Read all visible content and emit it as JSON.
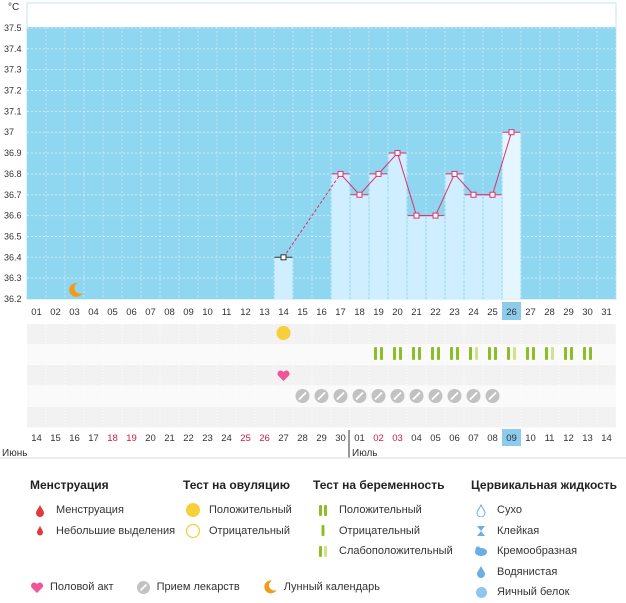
{
  "chart_data": {
    "type": "line",
    "ylabel": "°C",
    "ylim": [
      36.2,
      37.55
    ],
    "y_ticks": [
      "36.2",
      "36.3",
      "36.4",
      "36.5",
      "36.6",
      "36.7",
      "36.8",
      "36.9",
      "37",
      "37.1",
      "37.2",
      "37.3",
      "37.4",
      "37.5"
    ],
    "top_dates": [
      "01",
      "02",
      "03",
      "04",
      "05",
      "06",
      "07",
      "08",
      "09",
      "10",
      "11",
      "12",
      "13",
      "14",
      "15",
      "16",
      "17",
      "18",
      "19",
      "20",
      "21",
      "22",
      "23",
      "24",
      "25",
      "26",
      "27",
      "28",
      "29",
      "30",
      "31"
    ],
    "bottom_dates": [
      "14",
      "15",
      "16",
      "17",
      "18",
      "19",
      "20",
      "21",
      "22",
      "23",
      "24",
      "25",
      "26",
      "27",
      "28",
      "29",
      "30",
      "01",
      "02",
      "03",
      "04",
      "05",
      "06",
      "07",
      "08",
      "09",
      "10",
      "11",
      "12",
      "13",
      "14"
    ],
    "bottom_red_days": [
      4,
      5,
      11,
      12,
      18,
      19
    ],
    "month_labels": [
      {
        "text": "Июнь",
        "col": 0
      },
      {
        "text": "Июль",
        "col": 17
      }
    ],
    "highlight_col": 25,
    "temperature": [
      {
        "day": 14,
        "value": 36.4
      },
      {
        "day": 17,
        "value": 36.8
      },
      {
        "day": 18,
        "value": 36.7
      },
      {
        "day": 19,
        "value": 36.8
      },
      {
        "day": 20,
        "value": 36.9
      },
      {
        "day": 21,
        "value": 36.6
      },
      {
        "day": 22,
        "value": 36.6
      },
      {
        "day": 23,
        "value": 36.8
      },
      {
        "day": 24,
        "value": 36.7
      },
      {
        "day": 25,
        "value": 36.7
      },
      {
        "day": 26,
        "value": 37.0
      }
    ],
    "moon_day": 3,
    "ovulation_positive_days": [
      14
    ],
    "intercourse_days": [
      14
    ],
    "medication_days": [
      15,
      16,
      17,
      18,
      19,
      20,
      21,
      22,
      23,
      24,
      25
    ],
    "pregnancy_tests": [
      {
        "day": 19,
        "result": "positive"
      },
      {
        "day": 20,
        "result": "positive"
      },
      {
        "day": 21,
        "result": "positive"
      },
      {
        "day": 22,
        "result": "positive"
      },
      {
        "day": 23,
        "result": "positive"
      },
      {
        "day": 24,
        "result": "weak"
      },
      {
        "day": 25,
        "result": "positive"
      },
      {
        "day": 26,
        "result": "weak"
      },
      {
        "day": 27,
        "result": "positive"
      },
      {
        "day": 28,
        "result": "weak"
      },
      {
        "day": 29,
        "result": "positive"
      },
      {
        "day": 30,
        "result": "positive"
      }
    ]
  },
  "colors": {
    "sky": "#8fd6f0",
    "bar": "#cfeeff",
    "highlight": "#8ccbec",
    "line": "#e0306a",
    "positive": "#8cbf26",
    "weak": "#cfe48a",
    "ovulation": "#f6cf3a",
    "heart": "#f0559a",
    "pill": "#b8b8b8",
    "moon": "#f29a1a",
    "menstruation": "#e23a3a",
    "fluid": "#6aaee6"
  },
  "legend": {
    "menstruation": {
      "title": "Менструация",
      "items": [
        "Менструация",
        "Небольшие выделения"
      ]
    },
    "ovulation": {
      "title": "Тест на овуляцию",
      "items": [
        "Положительный",
        "Отрицательный"
      ]
    },
    "pregnancy": {
      "title": "Тест на беременность",
      "items": [
        "Положительный",
        "Отрицательный",
        "Слабоположительный"
      ]
    },
    "cervical": {
      "title": "Цервикальная жидкость",
      "items": [
        "Сухо",
        "Клейкая",
        "Кремообразная",
        "Водянистая",
        "Яичный белок"
      ]
    },
    "bottom": [
      "Половой акт",
      "Прием лекарств",
      "Лунный календарь"
    ]
  }
}
